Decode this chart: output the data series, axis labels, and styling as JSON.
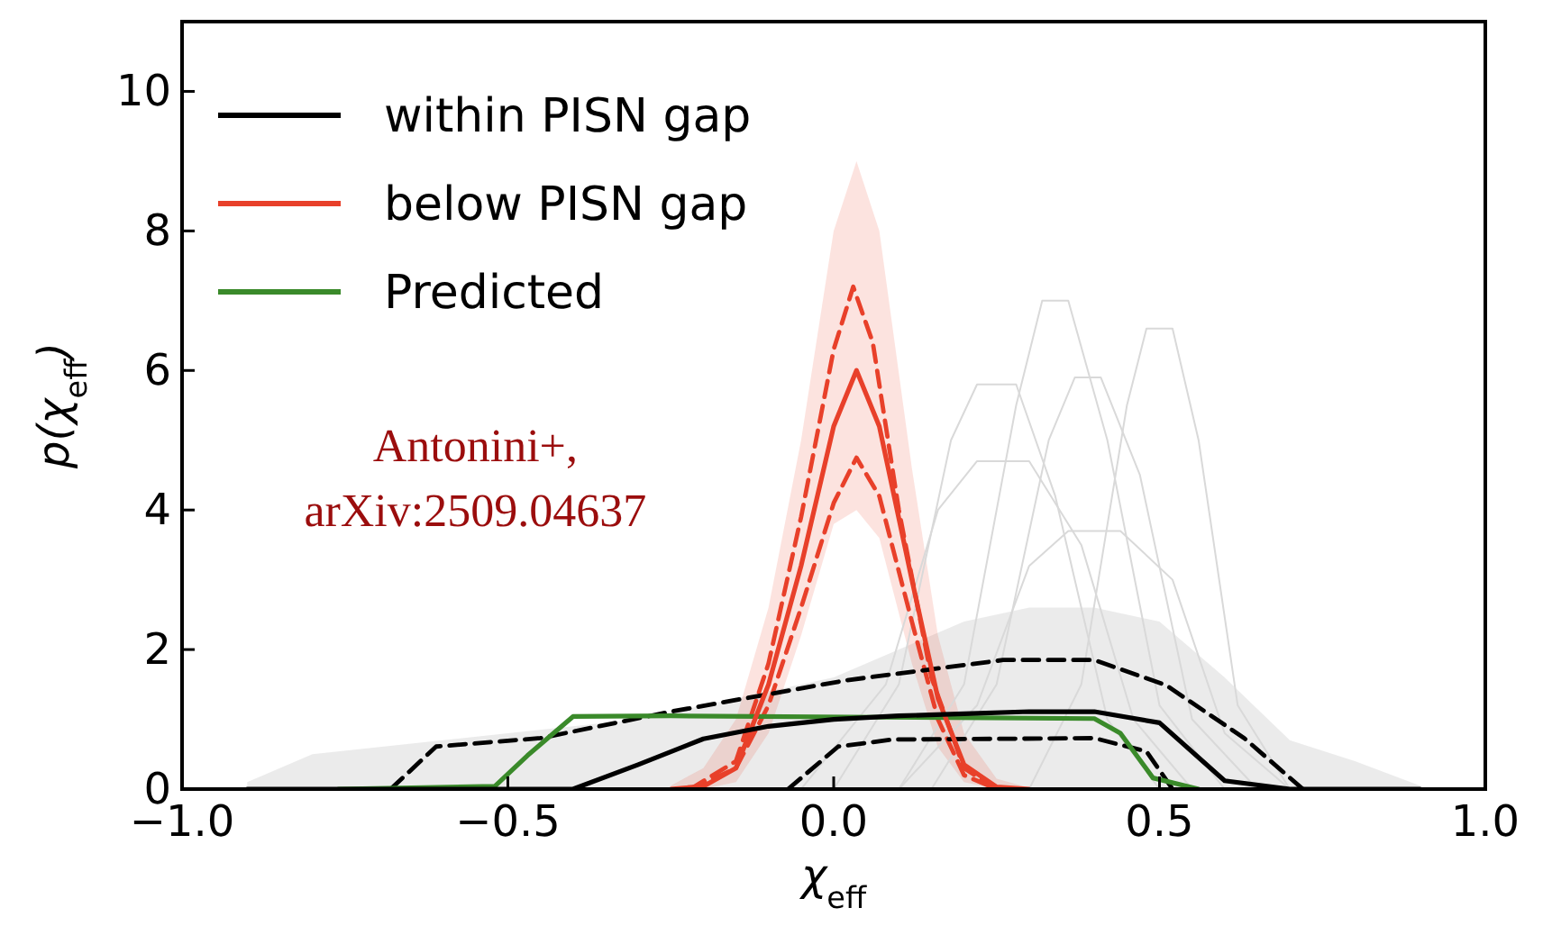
{
  "chart_data": {
    "type": "line",
    "xlabel": "χ$_{eff}$",
    "ylabel": "p(χ$_{eff}$)",
    "xlim": [
      -1.0,
      1.0
    ],
    "xticks": [
      {
        "value": -1.0,
        "label": "−1.0"
      },
      {
        "value": -0.5,
        "label": "−0.5"
      },
      {
        "value": 0,
        "label": "0.0"
      },
      {
        "value": 0.5,
        "label": "0.5"
      },
      {
        "value": 1.0,
        "label": "1.0"
      }
    ],
    "ylim": [
      0,
      11
    ],
    "yticks": [
      0,
      2,
      4,
      6,
      8,
      10
    ],
    "grid": false,
    "legend": "top left",
    "annotations": [
      "Antonini+, arXiv:2509.04637"
    ],
    "series": [
      {
        "name": "within PISN gap",
        "color": "#000000",
        "x": [
          -0.9,
          -0.8,
          -0.7,
          -0.6,
          -0.5,
          -0.4,
          -0.3,
          -0.2,
          -0.1,
          0,
          0.1,
          0.2,
          0.3,
          0.4,
          0.5,
          0.6,
          0.7,
          0.8,
          0.9
        ],
        "values": [
          0,
          0,
          0,
          0,
          0,
          0,
          0.35,
          0.72,
          0.9,
          1.0,
          1.05,
          1.08,
          1.11,
          1.11,
          0.95,
          0.12,
          0,
          0,
          0
        ],
        "lower": [
          0,
          0,
          0,
          0,
          0,
          0,
          0,
          0,
          0,
          0,
          0,
          0,
          0,
          0,
          0,
          0,
          0,
          0,
          0
        ],
        "upper": [
          0.1,
          0.5,
          0.6,
          0.7,
          0.8,
          0.9,
          1.0,
          1.2,
          1.4,
          1.6,
          2.0,
          2.4,
          2.6,
          2.6,
          2.4,
          1.6,
          0.7,
          0.4,
          0.05
        ]
      },
      {
        "name": "below PISN gap",
        "color": "#e8402a",
        "x": [
          -0.25,
          -0.2,
          -0.15,
          -0.1,
          -0.05,
          0,
          0.035,
          0.07,
          0.12,
          0.16,
          0.2,
          0.25,
          0.3
        ],
        "values": [
          0,
          0.04,
          0.3,
          1.5,
          3.2,
          5.2,
          6.0,
          5.2,
          3.0,
          1.3,
          0.35,
          0.03,
          0
        ],
        "lower": [
          0,
          0,
          0.1,
          0.8,
          2.2,
          3.8,
          4.0,
          3.6,
          1.8,
          0.6,
          0.1,
          0,
          0
        ],
        "upper": [
          0.05,
          0.3,
          1.0,
          2.6,
          5.0,
          8.0,
          9.0,
          8.0,
          4.6,
          2.2,
          0.8,
          0.15,
          0.02
        ]
      },
      {
        "name": "Predicted",
        "color": "#3a8a2a",
        "x": [
          -0.76,
          -0.52,
          -0.47,
          -0.4,
          -0.25,
          0.4,
          0.44,
          0.49,
          0.56
        ],
        "values": [
          0,
          0.04,
          0.48,
          1.04,
          1.05,
          1.01,
          0.8,
          0.16,
          0
        ]
      },
      {
        "color": "#000000",
        "line_style": "dashed",
        "x": [
          -0.68,
          -0.61,
          -0.45,
          -0.25,
          0.02,
          0.26,
          0.4,
          0.51,
          0.63,
          0.72
        ],
        "values": [
          0,
          0.61,
          0.73,
          1.11,
          1.56,
          1.85,
          1.85,
          1.49,
          0.73,
          0
        ]
      },
      {
        "color": "#000000",
        "line_style": "dashed",
        "x": [
          -0.07,
          0.007,
          0.09,
          0.4,
          0.48,
          0.52
        ],
        "values": [
          0,
          0.61,
          0.71,
          0.73,
          0.54,
          0
        ]
      },
      {
        "color": "#e8402a",
        "line_style": "dashed",
        "x": [
          -0.22,
          -0.15,
          -0.1,
          -0.05,
          0,
          0.03,
          0.06,
          0.1,
          0.15,
          0.2,
          0.25
        ],
        "values": [
          0,
          0.4,
          1.8,
          3.9,
          6.3,
          7.2,
          6.4,
          4.0,
          1.6,
          0.3,
          0
        ]
      },
      {
        "color": "#e8402a",
        "line_style": "dashed",
        "x": [
          -0.22,
          -0.15,
          -0.1,
          -0.05,
          0,
          0.035,
          0.07,
          0.12,
          0.16,
          0.2,
          0.25
        ],
        "values": [
          0,
          0.3,
          1.2,
          2.6,
          4.1,
          4.75,
          4.2,
          2.4,
          1.0,
          0.2,
          0
        ]
      },
      {
        "color": "#d9d9d9",
        "x": [
          0.1,
          0.2,
          0.28,
          0.32,
          0.36,
          0.42,
          0.5,
          0.6
        ],
        "values": [
          0,
          1.5,
          5.5,
          7.0,
          7.0,
          5,
          1.2,
          0
        ]
      },
      {
        "color": "#d9d9d9",
        "x": [
          0.3,
          0.38,
          0.45,
          0.48,
          0.52,
          0.56,
          0.62,
          0.7
        ],
        "values": [
          0,
          1.5,
          5.5,
          6.6,
          6.6,
          5,
          1.2,
          0
        ]
      },
      {
        "color": "#d9d9d9",
        "x": [
          0.15,
          0.25,
          0.33,
          0.37,
          0.41,
          0.47,
          0.55,
          0.65
        ],
        "values": [
          0,
          1.5,
          5,
          5.9,
          5.9,
          4.5,
          1,
          0
        ]
      },
      {
        "color": "#d9d9d9",
        "x": [
          0.0,
          0.1,
          0.18,
          0.22,
          0.28,
          0.34,
          0.42,
          0.5
        ],
        "values": [
          0,
          1.5,
          5,
          5.8,
          5.8,
          4.2,
          1,
          0
        ]
      },
      {
        "color": "#d9d9d9",
        "x": [
          -0.05,
          0.08,
          0.16,
          0.22,
          0.3,
          0.38,
          0.46,
          0.55
        ],
        "values": [
          0,
          1.5,
          4,
          4.7,
          4.7,
          3.5,
          1,
          0
        ]
      },
      {
        "color": "#d9d9d9",
        "x": [
          0.1,
          0.22,
          0.3,
          0.36,
          0.44,
          0.52,
          0.6,
          0.7
        ],
        "values": [
          0,
          1.2,
          3.2,
          3.7,
          3.7,
          3,
          0.8,
          0
        ]
      }
    ]
  }
}
